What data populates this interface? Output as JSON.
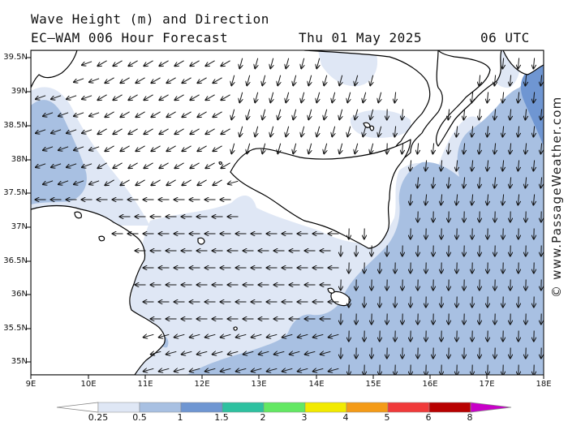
{
  "map": {
    "title_line1": "Wave Height (m) and Direction",
    "title_model": "EC–WAM 006 Hour Forecast",
    "title_date": "Thu 01 May 2025",
    "title_time": "06 UTC",
    "watermark": "© www.PassageWeather.com",
    "lat_labels": [
      "39.5N",
      "39N",
      "38.5N",
      "38N",
      "37.5N",
      "37N",
      "36.5N",
      "36N",
      "35.5N",
      "35N"
    ],
    "lon_labels": [
      "9E",
      "10E",
      "11E",
      "12E",
      "13E",
      "14E",
      "15E",
      "16E",
      "17E",
      "18E"
    ]
  },
  "legend": {
    "labels": [
      "0.25",
      "0.5",
      "1",
      "1.5",
      "2",
      "3",
      "4",
      "5",
      "6",
      "8"
    ],
    "colors": [
      "#ffffff",
      "#dfe7f5",
      "#a8c0e2",
      "#6f96d2",
      "#2ec1a0",
      "#63e863",
      "#f2ea00",
      "#f49b17",
      "#f03a3a",
      "#b80000",
      "#c800c8"
    ],
    "unit": "m"
  },
  "colors": {
    "land": "#ffffff",
    "sea_0_25": "#ffffff",
    "sea_0_5": "#dfe7f5",
    "sea_1": "#a8c0e2",
    "sea_1_5": "#6f96d2",
    "coast": "#000000",
    "arrow": "#111111"
  }
}
